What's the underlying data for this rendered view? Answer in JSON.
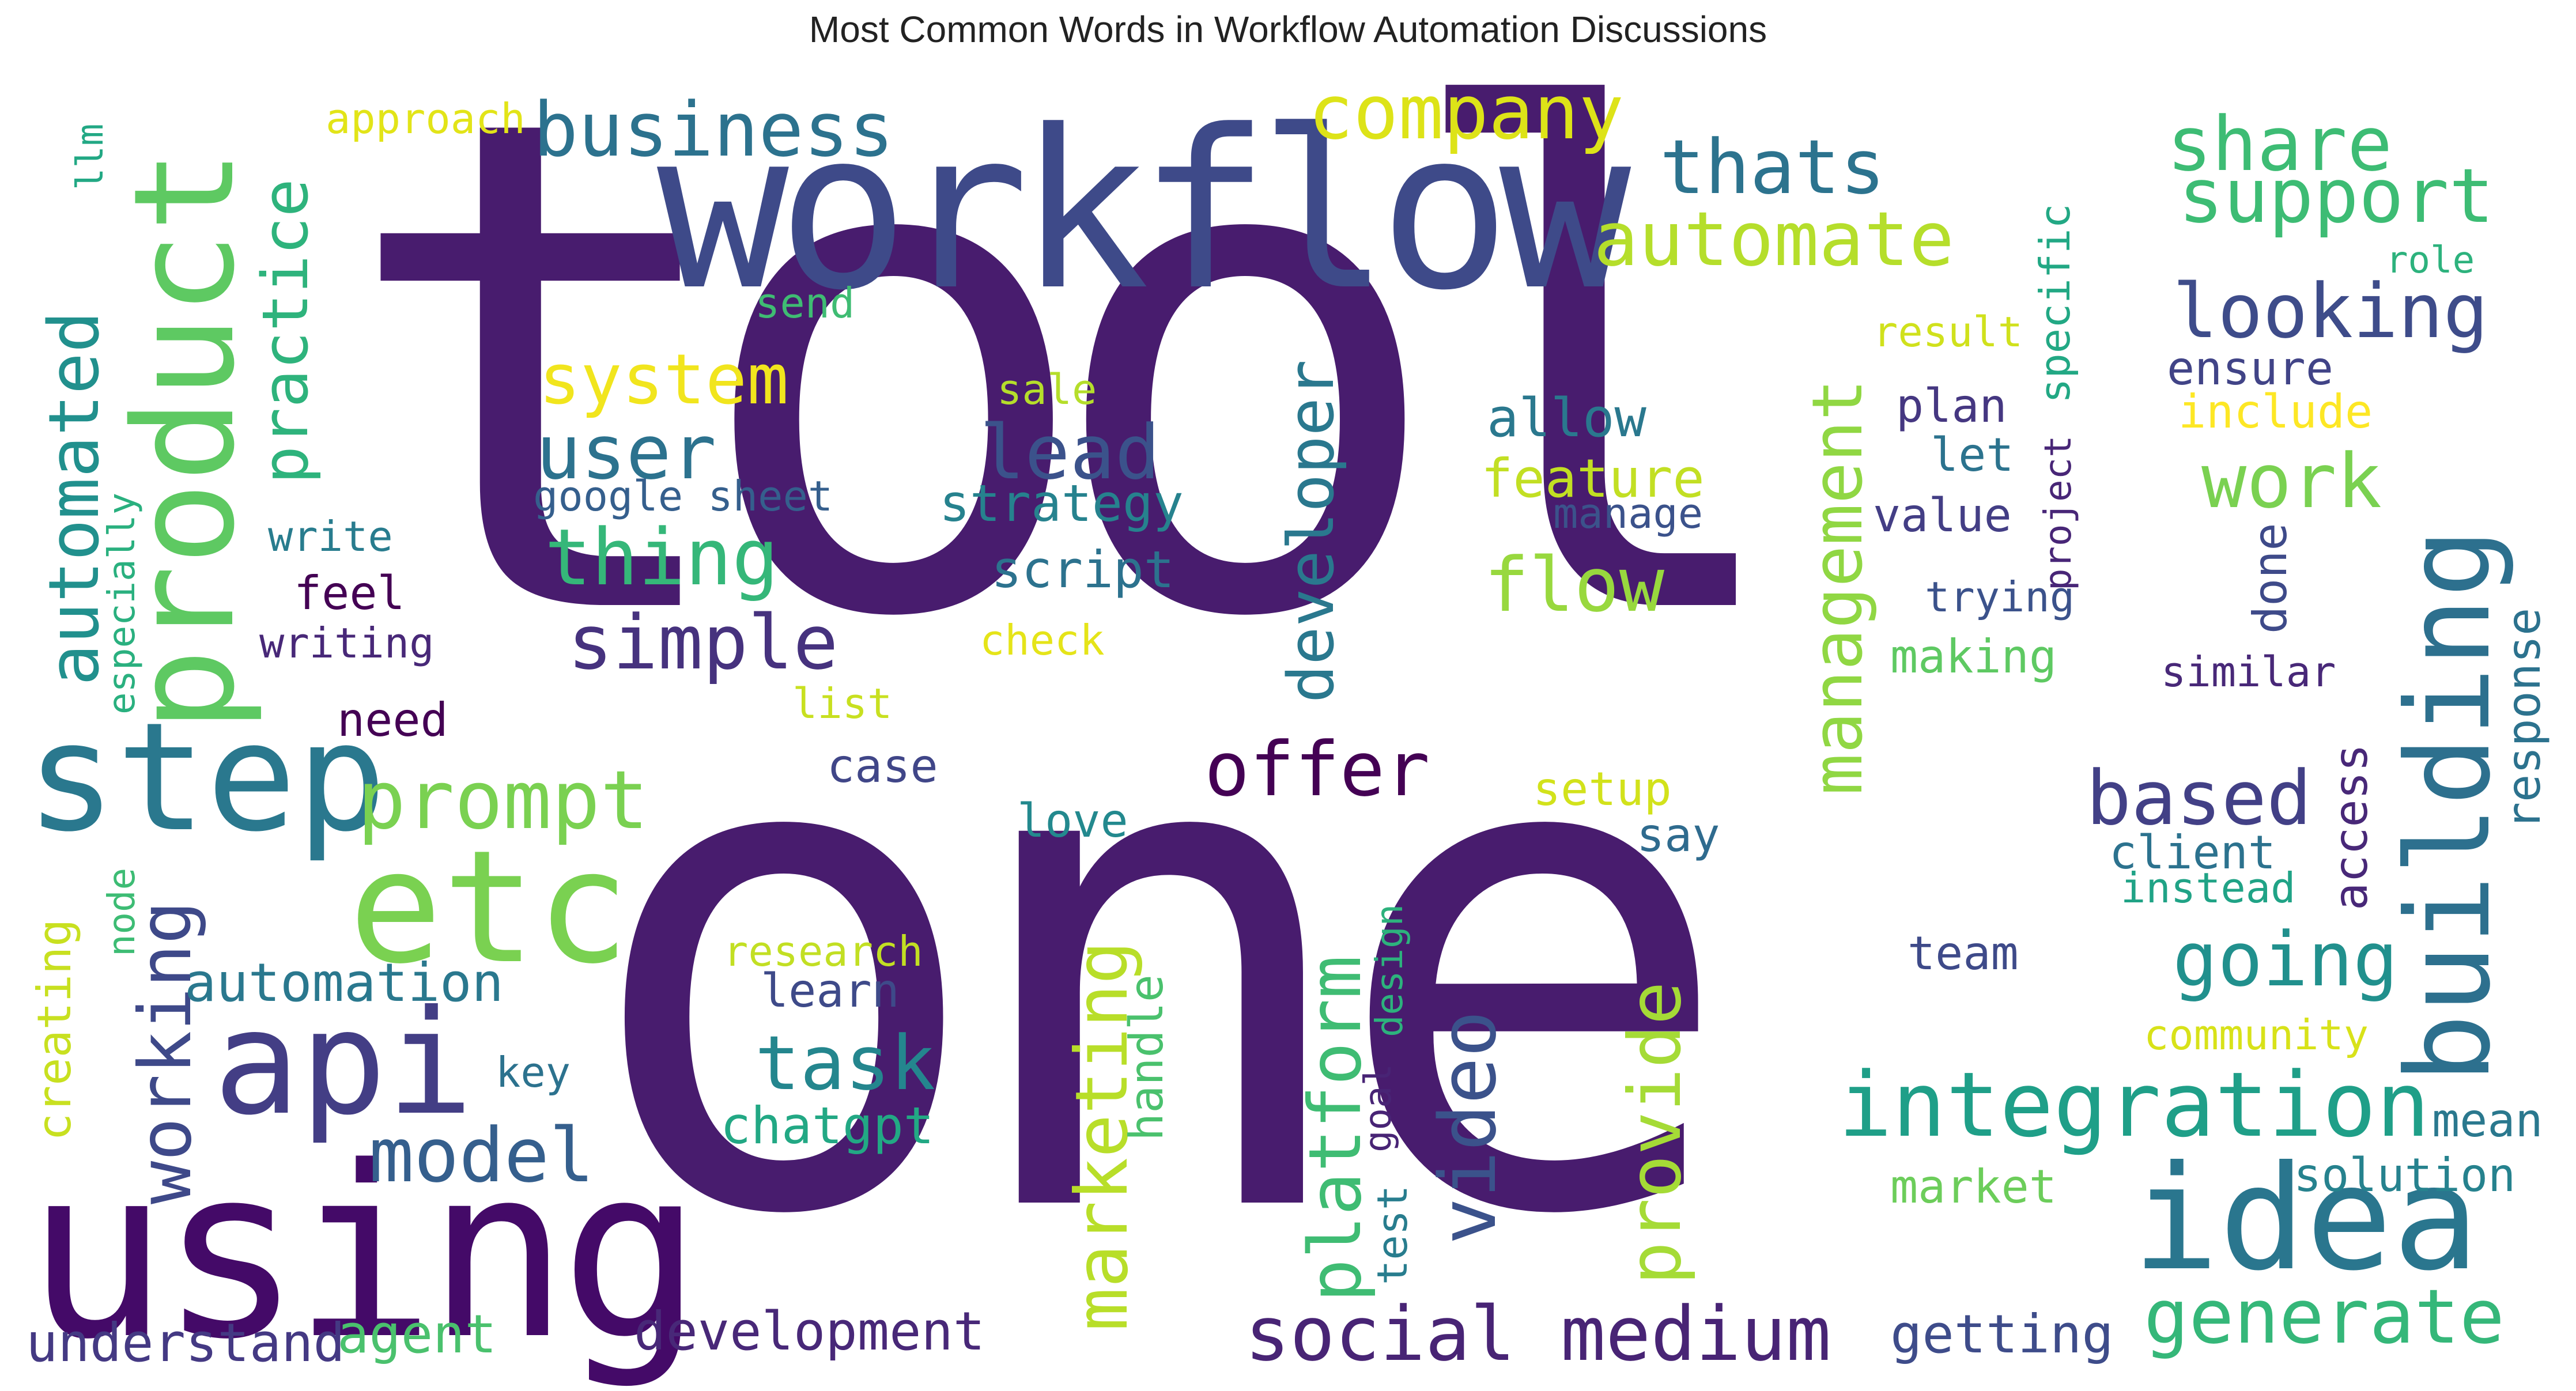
{
  "title": "Most Common Words in Workflow Automation Discussions",
  "words": [
    {
      "text": "tool",
      "color": "#481c6e"
    },
    {
      "text": "one",
      "color": "#481c6e"
    },
    {
      "text": "workflow",
      "color": "#3e4a89"
    },
    {
      "text": "using",
      "color": "#440a68"
    },
    {
      "text": "product",
      "color": "#5ec962"
    },
    {
      "text": "step",
      "color": "#2a788e"
    },
    {
      "text": "etc",
      "color": "#7ad151"
    },
    {
      "text": "api",
      "color": "#433e85"
    },
    {
      "text": "idea",
      "color": "#2a768e"
    },
    {
      "text": "building",
      "color": "#2d708e"
    },
    {
      "text": "business",
      "color": "#2c728e"
    },
    {
      "text": "company",
      "color": "#dde318"
    },
    {
      "text": "automate",
      "color": "#b5de2b"
    },
    {
      "text": "thats",
      "color": "#2c738e"
    },
    {
      "text": "share",
      "color": "#3dbc74"
    },
    {
      "text": "support",
      "color": "#3dbc74"
    },
    {
      "text": "looking",
      "color": "#3e4c8a"
    },
    {
      "text": "automated",
      "color": "#21908d"
    },
    {
      "text": "practice",
      "color": "#2eb37c"
    },
    {
      "text": "system",
      "color": "#f1e51d"
    },
    {
      "text": "user",
      "color": "#2c728e"
    },
    {
      "text": "thing",
      "color": "#35b779"
    },
    {
      "text": "simple",
      "color": "#46327e"
    },
    {
      "text": "lead",
      "color": "#3b528b"
    },
    {
      "text": "developer",
      "color": "#2a788e"
    },
    {
      "text": "management",
      "color": "#90d743"
    },
    {
      "text": "allow",
      "color": "#2a788e"
    },
    {
      "text": "feature",
      "color": "#c2df23"
    },
    {
      "text": "flow",
      "color": "#98d83e"
    },
    {
      "text": "offer",
      "color": "#440154"
    },
    {
      "text": "prompt",
      "color": "#7ad151"
    },
    {
      "text": "based",
      "color": "#424086"
    },
    {
      "text": "going",
      "color": "#21908d"
    },
    {
      "text": "work",
      "color": "#7ad151"
    },
    {
      "text": "integration",
      "color": "#1f9f88"
    },
    {
      "text": "generate",
      "color": "#35b779"
    },
    {
      "text": "social medium",
      "color": "#482475"
    },
    {
      "text": "task",
      "color": "#24868e"
    },
    {
      "text": "model",
      "color": "#355f8d"
    },
    {
      "text": "video",
      "color": "#3b528b"
    },
    {
      "text": "platform",
      "color": "#3fbc73"
    },
    {
      "text": "provide",
      "color": "#a5db36"
    },
    {
      "text": "marketing",
      "color": "#b8de29"
    },
    {
      "text": "working",
      "color": "#3e4989"
    },
    {
      "text": "automation",
      "color": "#2a788e"
    },
    {
      "text": "development",
      "color": "#482878"
    },
    {
      "text": "understand",
      "color": "#443983"
    },
    {
      "text": "agent",
      "color": "#4ac16d"
    },
    {
      "text": "getting",
      "color": "#3e4c8a"
    },
    {
      "text": "solution",
      "color": "#26828e"
    },
    {
      "text": "mean",
      "color": "#2a788e"
    },
    {
      "text": "market",
      "color": "#6ccd5a"
    },
    {
      "text": "team",
      "color": "#3e4a89"
    },
    {
      "text": "community",
      "color": "#d8e219"
    },
    {
      "text": "client",
      "color": "#2c728e"
    },
    {
      "text": "instead",
      "color": "#20a386"
    },
    {
      "text": "access",
      "color": "#482878"
    },
    {
      "text": "response",
      "color": "#2c728e"
    },
    {
      "text": "similar",
      "color": "#482878"
    },
    {
      "text": "done",
      "color": "#3e4a89"
    },
    {
      "text": "project",
      "color": "#482677"
    },
    {
      "text": "trying",
      "color": "#3b528b"
    },
    {
      "text": "value",
      "color": "#433e85"
    },
    {
      "text": "let",
      "color": "#2c738e"
    },
    {
      "text": "plan",
      "color": "#453781"
    },
    {
      "text": "making",
      "color": "#5ec962"
    },
    {
      "text": "specific",
      "color": "#22a884"
    },
    {
      "text": "result",
      "color": "#d0e11c"
    },
    {
      "text": "ensure",
      "color": "#414487"
    },
    {
      "text": "include",
      "color": "#fde725"
    },
    {
      "text": "role",
      "color": "#2db27d"
    },
    {
      "text": "approach",
      "color": "#e2e418"
    },
    {
      "text": "llm",
      "color": "#22a884"
    },
    {
      "text": "send",
      "color": "#3fbc73"
    },
    {
      "text": "sale",
      "color": "#b5de2b"
    },
    {
      "text": "strategy",
      "color": "#26828e"
    },
    {
      "text": "script",
      "color": "#2c728e"
    },
    {
      "text": "check",
      "color": "#e5e419"
    },
    {
      "text": "list",
      "color": "#c8e020"
    },
    {
      "text": "case",
      "color": "#404688"
    },
    {
      "text": "love",
      "color": "#23898e"
    },
    {
      "text": "setup",
      "color": "#d2e21b"
    },
    {
      "text": "say",
      "color": "#2f6b8e"
    },
    {
      "text": "manage",
      "color": "#3b528b"
    },
    {
      "text": "google sheet",
      "color": "#355f8d"
    },
    {
      "text": "write",
      "color": "#287c8e"
    },
    {
      "text": "feel",
      "color": "#440154"
    },
    {
      "text": "writing",
      "color": "#482878"
    },
    {
      "text": "especially",
      "color": "#2ab07f"
    },
    {
      "text": "need",
      "color": "#440154"
    },
    {
      "text": "creating",
      "color": "#c8e020"
    },
    {
      "text": "node",
      "color": "#3dbc74"
    },
    {
      "text": "key",
      "color": "#2c728e"
    },
    {
      "text": "research",
      "color": "#c2df23"
    },
    {
      "text": "learn",
      "color": "#3e4a89"
    },
    {
      "text": "chatgpt",
      "color": "#22a884"
    },
    {
      "text": "handle",
      "color": "#4ac16d"
    },
    {
      "text": "goal",
      "color": "#482475"
    },
    {
      "text": "design",
      "color": "#2db27d"
    },
    {
      "text": "test",
      "color": "#287d8e"
    }
  ]
}
